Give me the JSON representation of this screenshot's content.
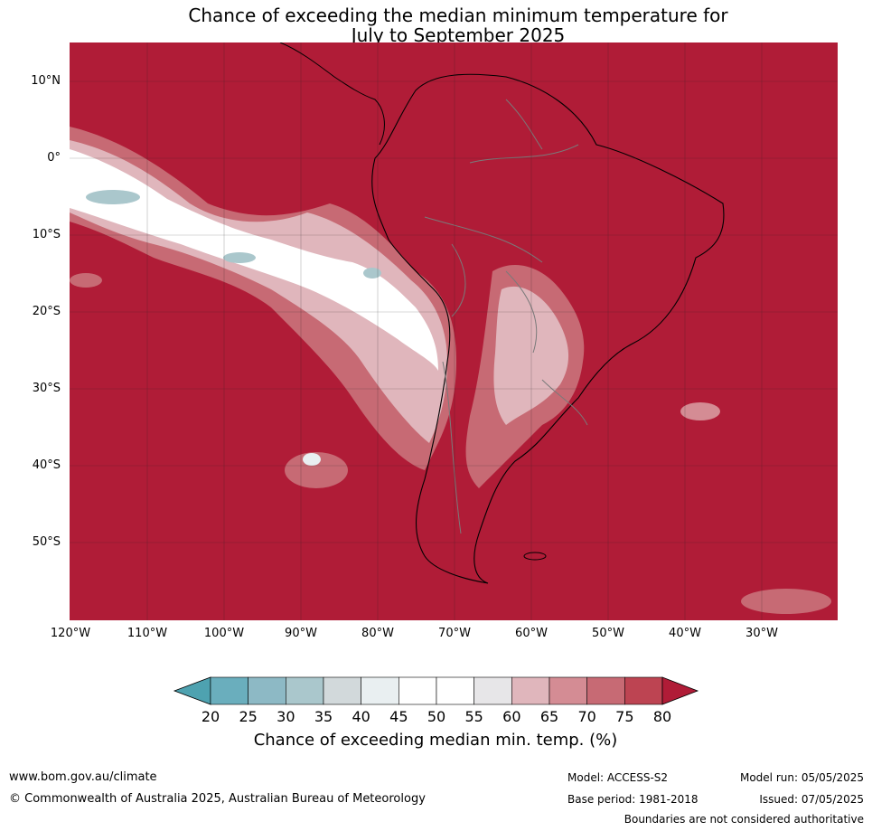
{
  "title_line1": "Chance of exceeding the median minimum temperature for",
  "title_line2": "July to September 2025",
  "lat_labels": [
    "10°N",
    "0°",
    "10°S",
    "20°S",
    "30°S",
    "40°S",
    "50°S"
  ],
  "lon_labels": [
    "120°W",
    "110°W",
    "100°W",
    "90°W",
    "80°W",
    "70°W",
    "60°W",
    "50°W",
    "40°W",
    "30°W"
  ],
  "colorbar": {
    "ticks": [
      "20",
      "25",
      "30",
      "35",
      "40",
      "45",
      "50",
      "55",
      "60",
      "65",
      "70",
      "75",
      "80"
    ],
    "colors": [
      "#4ea2b0",
      "#6aaebd",
      "#8db9c5",
      "#aac7cc",
      "#d2d9db",
      "#e9eff1",
      "#ffffff",
      "#ffffff",
      "#e7e6e8",
      "#e0b6bc",
      "#d48c94",
      "#c76a74",
      "#bd4452",
      "#b01c37"
    ],
    "label": "Chance of exceeding median min. temp. (%)"
  },
  "map_colors": {
    "ocean_high": "#b01c37",
    "land_border": "#7a7a7a",
    "coast": "#000000"
  },
  "footer": {
    "website": "www.bom.gov.au/climate",
    "copyright": "© Commonwealth of Australia 2025, Australian Bureau of Meteorology",
    "model": "Model: ACCESS-S2",
    "base_period": "Base period: 1981-2018",
    "model_run": "Model run: 05/05/2025",
    "issued": "Issued: 07/05/2025",
    "disclaimer": "Boundaries are not considered authoritative"
  }
}
